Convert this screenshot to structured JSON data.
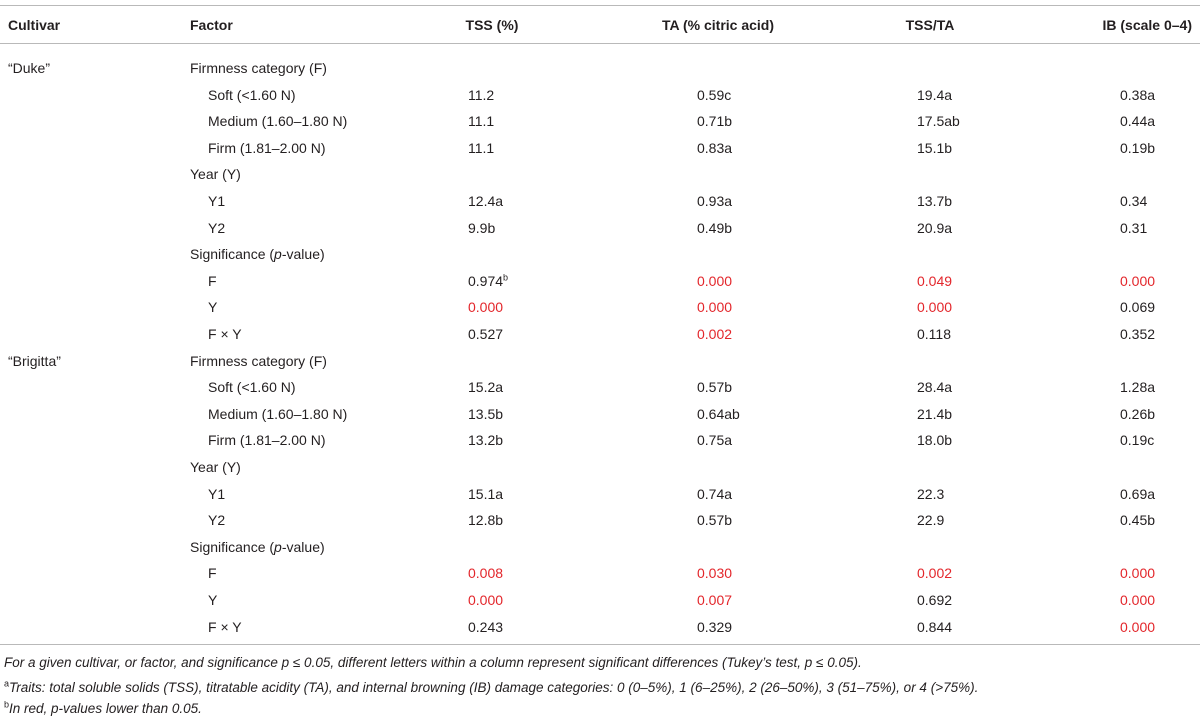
{
  "table": {
    "header": [
      "Cultivar",
      "Factor",
      "TSS (%)",
      "TA (% citric acid)",
      "TSS/TA",
      "IB (scale 0–4)"
    ],
    "significant_color": "#e3262b",
    "cultivars": [
      {
        "name": "“Duke”",
        "groups": [
          {
            "title": "Firmness category (F)",
            "rows": [
              {
                "factor": "Soft (<1.60 N)",
                "values": [
                  "11.2",
                  "0.59c",
                  "19.4a",
                  "0.38a"
                ]
              },
              {
                "factor": "Medium (1.60–1.80 N)",
                "values": [
                  "11.1",
                  "0.71b",
                  "17.5ab",
                  "0.44a"
                ]
              },
              {
                "factor": "Firm (1.81–2.00 N)",
                "values": [
                  "11.1",
                  "0.83a",
                  "15.1b",
                  "0.19b"
                ]
              }
            ]
          },
          {
            "title": "Year (Y)",
            "rows": [
              {
                "factor": "Y1",
                "values": [
                  "12.4a",
                  "0.93a",
                  "13.7b",
                  "0.34"
                ]
              },
              {
                "factor": "Y2",
                "values": [
                  "9.9b",
                  "0.49b",
                  "20.9a",
                  "0.31"
                ]
              }
            ]
          },
          {
            "title": [
              "Significance (",
              "p",
              "-value)"
            ],
            "rows": [
              {
                "factor": "F",
                "values": [
                  {
                    "text": "0.974",
                    "sup": "b"
                  },
                  {
                    "text": "0.000",
                    "significant": true
                  },
                  {
                    "text": "0.049",
                    "significant": true
                  },
                  {
                    "text": "0.000",
                    "significant": true
                  }
                ]
              },
              {
                "factor": "Y",
                "values": [
                  {
                    "text": "0.000",
                    "significant": true
                  },
                  {
                    "text": "0.000",
                    "significant": true
                  },
                  {
                    "text": "0.000",
                    "significant": true
                  },
                  "0.069"
                ]
              },
              {
                "factor": "F × Y",
                "values": [
                  "0.527",
                  {
                    "text": "0.002",
                    "significant": true
                  },
                  "0.118",
                  "0.352"
                ]
              }
            ]
          }
        ]
      },
      {
        "name": "“Brigitta”",
        "groups": [
          {
            "title": "Firmness category (F)",
            "rows": [
              {
                "factor": "Soft (<1.60 N)",
                "values": [
                  "15.2a",
                  "0.57b",
                  "28.4a",
                  "1.28a"
                ]
              },
              {
                "factor": "Medium (1.60–1.80 N)",
                "values": [
                  "13.5b",
                  "0.64ab",
                  "21.4b",
                  "0.26b"
                ]
              },
              {
                "factor": "Firm (1.81–2.00 N)",
                "values": [
                  "13.2b",
                  "0.75a",
                  "18.0b",
                  "0.19c"
                ]
              }
            ]
          },
          {
            "title": "Year (Y)",
            "rows": [
              {
                "factor": "Y1",
                "values": [
                  "15.1a",
                  "0.74a",
                  "22.3",
                  "0.69a"
                ]
              },
              {
                "factor": "Y2",
                "values": [
                  "12.8b",
                  "0.57b",
                  "22.9",
                  "0.45b"
                ]
              }
            ]
          },
          {
            "title": [
              "Significance (",
              "p",
              "-value)"
            ],
            "rows": [
              {
                "factor": "F",
                "values": [
                  {
                    "text": "0.008",
                    "significant": true
                  },
                  {
                    "text": "0.030",
                    "significant": true
                  },
                  {
                    "text": "0.002",
                    "significant": true
                  },
                  {
                    "text": "0.000",
                    "significant": true
                  }
                ]
              },
              {
                "factor": "Y",
                "values": [
                  {
                    "text": "0.000",
                    "significant": true
                  },
                  {
                    "text": "0.007",
                    "significant": true
                  },
                  "0.692",
                  {
                    "text": "0.000",
                    "significant": true
                  }
                ]
              },
              {
                "factor": "F × Y",
                "values": [
                  "0.243",
                  "0.329",
                  "0.844",
                  {
                    "text": "0.000",
                    "significant": true
                  }
                ]
              }
            ]
          }
        ]
      }
    ],
    "footnotes": [
      {
        "text": "For a given cultivar, or factor, and significance p ≤ 0.05, different letters within a column represent significant differences (Tukey’s test, p ≤ 0.05)."
      },
      {
        "mark": "a",
        "text": "Traits: total soluble solids (TSS), titratable acidity (TA), and internal browning (IB) damage categories: 0 (0–5%), 1 (6–25%), 2 (26–50%), 3 (51–75%), or 4 (>75%)."
      },
      {
        "mark": "b",
        "text": "In red, p-values lower than 0.05."
      }
    ]
  }
}
